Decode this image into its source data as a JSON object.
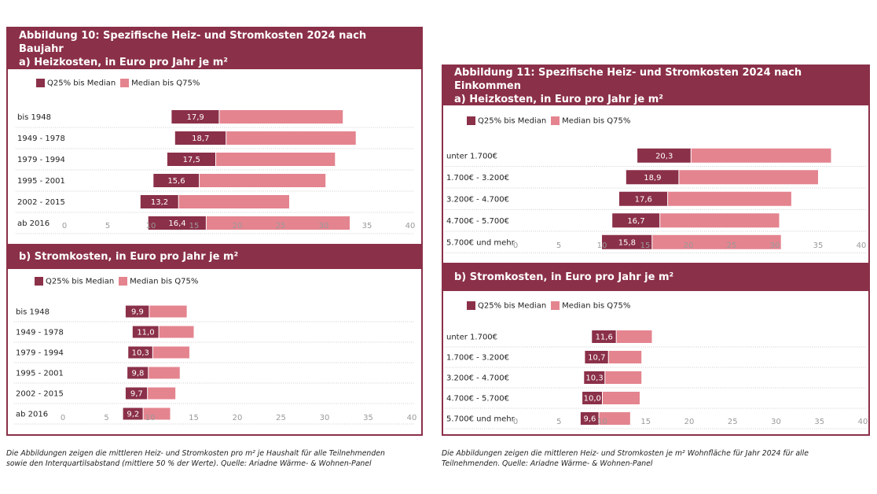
{
  "colors": {
    "brand": "#8b3049",
    "q25_median": "#8b3049",
    "median_q75": "#e4848f",
    "border": "#8b3049"
  },
  "left": {
    "title1": "Abbildung 10: Spezifische Heiz- und Stromkosten 2024 nach Baujahr",
    "title2": "a) Heizkosten, in Euro pro Jahr je m²",
    "subtitle_b": "b) Stromkosten, in Euro pro Jahr je m²",
    "legend_q25": "Q25% bis Median",
    "legend_q75": "Median bis Q75%",
    "note": "Die Abbildungen zeigen die mittleren Heiz- und Stromkosten pro m² je Haushalt für alle Teilnehmenden sowie den Interquartilsabstand (mittlere 50 % der Werte). Quelle: Ariadne Wärme- & Wohnen-Panel"
  },
  "right": {
    "title1": "Abbildung 11: Spezifische Heiz- und Stromkosten 2024 nach Einkommen",
    "title2": "a) Heizkosten, in Euro pro Jahr je m²",
    "subtitle_b": "b) Stromkosten, in Euro pro Jahr je m²",
    "legend_q25": "Q25% bis Median",
    "legend_q75": "Median bis Q75%",
    "note": "Die Abbildungen zeigen die mittleren Heiz- und Stromkosten je m² Wohnfläche für Jahr 2024 für alle Teilnehmenden. Quelle: Ariadne Wärme- & Wohnen-Panel"
  },
  "chart_data": [
    {
      "id": "heiz_baujahr",
      "type": "bar",
      "categories": [
        "bis 1948",
        "1949 - 1978",
        "1979 - 1994",
        "1995 - 2001",
        "2002 - 2015",
        "ab 2016"
      ],
      "q25": [
        12.4,
        12.8,
        11.9,
        10.3,
        8.8,
        9.7
      ],
      "median": [
        17.9,
        18.7,
        17.5,
        15.6,
        13.2,
        16.4
      ],
      "q75": [
        32.2,
        33.7,
        31.3,
        30.2,
        26.0,
        33.0
      ],
      "labels": [
        "17,9",
        "18,7",
        "17,5",
        "15,6",
        "13,2",
        "16,4"
      ],
      "xticks": [
        "0",
        "5",
        "10",
        "15",
        "20",
        "25",
        "30",
        "35",
        "40"
      ],
      "xlim": [
        0,
        40
      ]
    },
    {
      "id": "strom_baujahr",
      "type": "bar",
      "categories": [
        "bis 1948",
        "1949 - 1978",
        "1979 - 1994",
        "1995 - 2001",
        "2002 - 2015",
        "ab 2016"
      ],
      "q25": [
        7.2,
        8.0,
        7.5,
        7.4,
        7.2,
        6.9
      ],
      "median": [
        9.9,
        11.0,
        10.3,
        9.8,
        9.7,
        9.2
      ],
      "q75": [
        14.2,
        15.0,
        14.5,
        13.4,
        12.9,
        12.3
      ],
      "labels": [
        "9,9",
        "11,0",
        "10,3",
        "9,8",
        "9,7",
        "9,2"
      ],
      "xticks": [
        "0",
        "5",
        "10",
        "15",
        "20",
        "25",
        "30",
        "35",
        "40"
      ],
      "xlim": [
        0,
        40
      ]
    },
    {
      "id": "heiz_einkommen",
      "type": "bar",
      "categories": [
        "unter 1.700€",
        "1.700€ - 3.200€",
        "3.200€ - 4.700€",
        "4.700€ - 5.700€",
        "5.700€ und mehr"
      ],
      "q25": [
        14.1,
        12.8,
        12.0,
        11.2,
        10.0
      ],
      "median": [
        20.3,
        18.9,
        17.6,
        16.7,
        15.8
      ],
      "q75": [
        36.5,
        35.0,
        31.9,
        30.5,
        30.7
      ],
      "labels": [
        "20,3",
        "18,9",
        "17,6",
        "16,7",
        "15,8"
      ],
      "xticks": [
        "0",
        "5",
        "10",
        "15",
        "20",
        "25",
        "30",
        "35",
        "40"
      ],
      "xlim": [
        0,
        40
      ]
    },
    {
      "id": "strom_einkommen",
      "type": "bar",
      "categories": [
        "unter 1.700€",
        "1.700€ - 3.200€",
        "3.200€ - 4.700€",
        "4.700€ - 5.700€",
        "5.700€ und mehr"
      ],
      "q25": [
        8.8,
        8.0,
        7.9,
        7.7,
        7.5
      ],
      "median": [
        11.6,
        10.7,
        10.3,
        10.0,
        9.6
      ],
      "q75": [
        15.7,
        14.5,
        14.5,
        14.3,
        13.2
      ],
      "labels": [
        "11,6",
        "10,7",
        "10,3",
        "10,0",
        "9,6"
      ],
      "xticks": [
        "0",
        "5",
        "10",
        "15",
        "20",
        "25",
        "30",
        "35",
        "40"
      ],
      "xlim": [
        0,
        40
      ]
    }
  ]
}
